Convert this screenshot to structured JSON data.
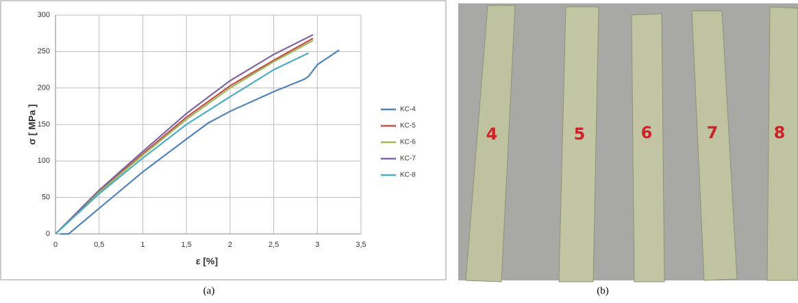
{
  "chart_data": {
    "type": "line",
    "ylabel": "σ [ MPa ]",
    "xlabel": "ε  [%]",
    "xlim": [
      0,
      3.5
    ],
    "ylim": [
      0,
      300
    ],
    "xticks": [
      0,
      {
        "value": 0.5,
        "label": "0,5"
      },
      1,
      {
        "value": 1.5,
        "label": "1,5"
      },
      2,
      {
        "value": 2.5,
        "label": "2,5"
      },
      3,
      {
        "value": 3.5,
        "label": "3,5"
      }
    ],
    "yticks": [
      0,
      50,
      100,
      150,
      200,
      250,
      300
    ],
    "grid": true,
    "legend": "right",
    "series": [
      {
        "name": "KC-4",
        "color": "#4f81bd",
        "x": [
          0.05,
          0.15,
          0.5,
          1,
          1.5,
          1.75,
          2,
          2.5,
          2.85,
          2.9,
          3.0,
          3.25
        ],
        "values": [
          0,
          0,
          35,
          85,
          130,
          152,
          168,
          195,
          212,
          216,
          232,
          252
        ]
      },
      {
        "name": "KC-5",
        "color": "#c0504d",
        "x": [
          0,
          0.5,
          1,
          1.5,
          2,
          2.5,
          2.95
        ],
        "values": [
          0,
          58,
          110,
          160,
          203,
          238,
          268
        ]
      },
      {
        "name": "KC-6",
        "color": "#9bbb59",
        "x": [
          0,
          0.5,
          1,
          1.5,
          2,
          2.5,
          2.95
        ],
        "values": [
          0,
          57,
          108,
          157,
          200,
          236,
          265
        ]
      },
      {
        "name": "KC-7",
        "color": "#8064a2",
        "x": [
          0,
          0.5,
          1,
          1.5,
          2,
          2.5,
          2.95
        ],
        "values": [
          0,
          60,
          113,
          165,
          210,
          246,
          273
        ]
      },
      {
        "name": "KC-8",
        "color": "#4bacc6",
        "x": [
          0,
          0.5,
          1,
          1.5,
          2,
          2.5,
          2.9
        ],
        "values": [
          0,
          55,
          104,
          150,
          188,
          225,
          248
        ]
      }
    ]
  },
  "photo": {
    "labels": [
      "4",
      "5",
      "6",
      "7",
      "8"
    ]
  },
  "captions": [
    "(a)",
    "(b)"
  ]
}
